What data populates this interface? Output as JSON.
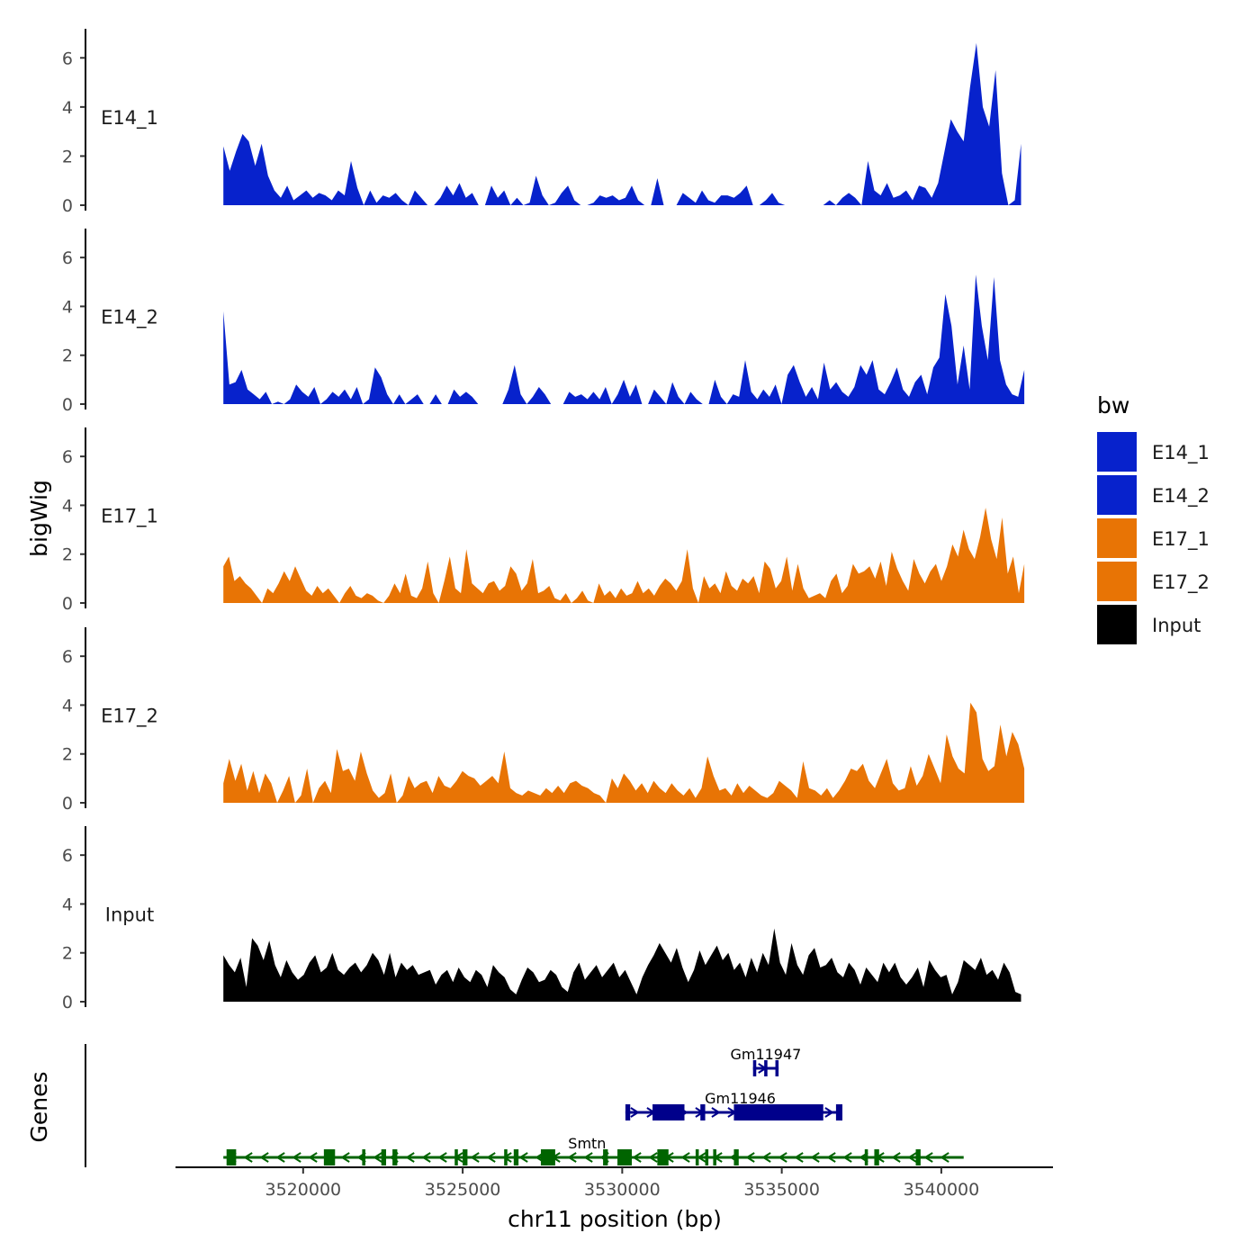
{
  "chart_data": {
    "type": "area",
    "title": "",
    "xlabel": "chr11 position (bp)",
    "ylabel": "bigWig",
    "genes_label": "Genes",
    "xlim": [
      3516000,
      3543500
    ],
    "ylim": [
      0,
      7
    ],
    "x_ticks": [
      {
        "value": 3520000,
        "label": "3520000"
      },
      {
        "value": 3525000,
        "label": "3525000"
      },
      {
        "value": 3530000,
        "label": "3530000"
      },
      {
        "value": 3535000,
        "label": "3535000"
      },
      {
        "value": 3540000,
        "label": "3540000"
      }
    ],
    "y_ticks": [
      {
        "value": 0,
        "label": "0"
      },
      {
        "value": 2,
        "label": "2"
      },
      {
        "value": 4,
        "label": "4"
      },
      {
        "value": 6,
        "label": "6"
      }
    ],
    "legend": {
      "title": "bw",
      "entries": [
        {
          "label": "E14_1",
          "color": "#0722cc"
        },
        {
          "label": "E14_2",
          "color": "#0722cc"
        },
        {
          "label": "E17_1",
          "color": "#e87405"
        },
        {
          "label": "E17_2",
          "color": "#e87405"
        },
        {
          "label": "Input",
          "color": "#000000"
        }
      ]
    },
    "series": [
      {
        "name": "E14_1",
        "color": "#0722cc",
        "x_start": 3517500,
        "x_end": 3542500,
        "values": [
          2.4,
          1.4,
          2.2,
          2.9,
          2.6,
          1.6,
          2.5,
          1.2,
          0.6,
          0.3,
          0.8,
          0.2,
          0.4,
          0.6,
          0.3,
          0.5,
          0.4,
          0.2,
          0.6,
          0.4,
          1.8,
          0.7,
          0,
          0.6,
          0.1,
          0.4,
          0.3,
          0.5,
          0.2,
          0,
          0.6,
          0.3,
          0,
          0,
          0.3,
          0.8,
          0.4,
          0.9,
          0.3,
          0.5,
          0,
          0,
          0.8,
          0.3,
          0.6,
          0,
          0.3,
          0,
          0.1,
          1.2,
          0.4,
          0,
          0.1,
          0.5,
          0.8,
          0.2,
          0,
          0,
          0.1,
          0.4,
          0.3,
          0.4,
          0.2,
          0.3,
          0.8,
          0.2,
          0,
          0,
          1.1,
          0,
          0,
          0,
          0.5,
          0.3,
          0.1,
          0.6,
          0.2,
          0.1,
          0.4,
          0.4,
          0.3,
          0.5,
          0.8,
          0,
          0,
          0.2,
          0.5,
          0.1,
          0,
          0,
          0,
          0,
          0,
          0,
          0,
          0.2,
          0,
          0.3,
          0.5,
          0.3,
          0,
          1.8,
          0.6,
          0.4,
          0.9,
          0.3,
          0.4,
          0.6,
          0.2,
          0.8,
          0.7,
          0.3,
          0.9,
          2.2,
          3.5,
          3.0,
          2.6,
          4.8,
          6.6,
          4.0,
          3.2,
          5.5,
          1.3,
          0,
          0.2,
          2.5
        ]
      },
      {
        "name": "E14_2",
        "color": "#0722cc",
        "x_start": 3517500,
        "x_end": 3542600,
        "values": [
          3.8,
          0.8,
          0.9,
          1.4,
          0.6,
          0.4,
          0.2,
          0.5,
          0,
          0.1,
          0,
          0.2,
          0.8,
          0.5,
          0.3,
          0.7,
          0,
          0.2,
          0.5,
          0.3,
          0.6,
          0.2,
          0.7,
          0,
          0.2,
          1.5,
          1.1,
          0.4,
          0,
          0.4,
          0,
          0.2,
          0.4,
          0,
          0,
          0.4,
          0,
          0,
          0.6,
          0.3,
          0.5,
          0.3,
          0,
          0,
          0,
          0,
          0,
          0.6,
          1.6,
          0.4,
          0,
          0.3,
          0.7,
          0.4,
          0,
          0,
          0,
          0.5,
          0.3,
          0.4,
          0.2,
          0.5,
          0.2,
          0.7,
          0,
          0.4,
          1.0,
          0.3,
          0.8,
          0,
          0,
          0.6,
          0.3,
          0,
          0.9,
          0.3,
          0,
          0.5,
          0.2,
          0,
          0,
          1.0,
          0.3,
          0,
          0.4,
          0.3,
          1.8,
          0.5,
          0.2,
          0.6,
          0.3,
          0.8,
          0,
          1.2,
          1.6,
          0.9,
          0.3,
          0.7,
          0.2,
          1.7,
          0.6,
          0.9,
          0.5,
          0.3,
          0.7,
          1.6,
          1.2,
          1.8,
          0.6,
          0.4,
          0.9,
          1.5,
          0.6,
          0.3,
          0.9,
          1.2,
          0.4,
          1.5,
          1.9,
          4.5,
          3.2,
          0.8,
          2.4,
          0.6,
          5.3,
          3.2,
          1.8,
          5.2,
          1.8,
          0.8,
          0.4,
          0.3,
          1.4
        ]
      },
      {
        "name": "E17_1",
        "color": "#e87405",
        "x_start": 3517500,
        "x_end": 3542600,
        "values": [
          1.5,
          1.9,
          0.9,
          1.1,
          0.8,
          0.6,
          0.3,
          0,
          0.6,
          0.4,
          0.8,
          1.3,
          0.9,
          1.5,
          1.0,
          0.5,
          0.3,
          0.7,
          0.4,
          0.6,
          0.3,
          0,
          0.4,
          0.7,
          0.3,
          0.2,
          0.4,
          0.3,
          0.1,
          0,
          0.3,
          0.8,
          0.4,
          1.2,
          0.3,
          0.2,
          0.6,
          1.7,
          0.4,
          0,
          0.9,
          1.9,
          0.6,
          0.4,
          2.2,
          0.8,
          0.6,
          0.4,
          0.8,
          0.9,
          0.5,
          0.7,
          1.5,
          1.2,
          0.5,
          0.8,
          1.8,
          0.4,
          0.5,
          0.7,
          0.2,
          0.1,
          0.4,
          0,
          0.2,
          0.5,
          0.1,
          0,
          0.8,
          0.3,
          0.5,
          0.2,
          0.6,
          0.3,
          0.4,
          0.9,
          0.4,
          0.6,
          0.3,
          0.7,
          1.0,
          0.8,
          0.5,
          0.9,
          2.2,
          0.6,
          0,
          1.1,
          0.6,
          0.8,
          0.4,
          1.3,
          0.7,
          0.5,
          1.0,
          0.8,
          1.1,
          0.4,
          1.7,
          1.4,
          0.6,
          0.9,
          1.9,
          0.5,
          1.6,
          0.6,
          0.2,
          0.3,
          0.4,
          0.2,
          0.9,
          1.2,
          0.4,
          0.7,
          1.6,
          1.2,
          1.3,
          1.5,
          1.0,
          1.7,
          0.7,
          2.1,
          1.4,
          0.9,
          0.5,
          1.8,
          1.2,
          0.8,
          1.3,
          1.6,
          0.9,
          1.5,
          2.4,
          1.9,
          3.0,
          2.2,
          1.8,
          2.7,
          3.9,
          2.6,
          1.8,
          3.5,
          1.2,
          1.9,
          0.4,
          1.6
        ]
      },
      {
        "name": "E17_2",
        "color": "#e87405",
        "x_start": 3517500,
        "x_end": 3542600,
        "values": [
          0.8,
          1.8,
          0.9,
          1.6,
          0.5,
          1.3,
          0.4,
          1.2,
          0.8,
          0,
          0.5,
          1.1,
          0,
          0.3,
          1.4,
          0,
          0.6,
          0.9,
          0.4,
          2.2,
          1.3,
          1.4,
          0.9,
          2.1,
          1.2,
          0.5,
          0.2,
          0.4,
          1.2,
          0,
          0.3,
          1.1,
          0.6,
          0.8,
          0.9,
          0.4,
          1.1,
          0.7,
          0.6,
          0.9,
          1.3,
          1.1,
          1.0,
          0.7,
          0.9,
          1.1,
          0.8,
          2.1,
          0.6,
          0.4,
          0.3,
          0.5,
          0.4,
          0.3,
          0.6,
          0.4,
          0.7,
          0.4,
          0.8,
          0.9,
          0.7,
          0.6,
          0.4,
          0.3,
          0,
          1.0,
          0.6,
          1.2,
          0.9,
          0.5,
          0.8,
          0.4,
          0.9,
          0.6,
          0.4,
          0.8,
          0.5,
          0.3,
          0.6,
          0.2,
          0.6,
          1.9,
          1.1,
          0.5,
          0.6,
          0.3,
          0.8,
          0.4,
          0.7,
          0.5,
          0.3,
          0.2,
          0.4,
          0.9,
          0.7,
          0.5,
          0.2,
          1.7,
          0.6,
          0.5,
          0.3,
          0.6,
          0.2,
          0.5,
          0.9,
          1.4,
          1.3,
          1.6,
          0.9,
          0.6,
          1.2,
          1.8,
          0.8,
          0.5,
          0.6,
          1.5,
          0.7,
          1.1,
          2.0,
          1.4,
          0.8,
          2.8,
          1.9,
          1.4,
          1.2,
          4.1,
          3.7,
          1.8,
          1.3,
          1.5,
          3.2,
          1.9,
          2.9,
          2.4,
          1.4
        ]
      },
      {
        "name": "Input",
        "color": "#000000",
        "x_start": 3517500,
        "x_end": 3542500,
        "values": [
          1.9,
          1.5,
          1.2,
          1.8,
          0.6,
          2.6,
          2.3,
          1.7,
          2.5,
          1.5,
          1.0,
          1.7,
          1.2,
          0.9,
          1.1,
          1.6,
          1.9,
          1.2,
          1.4,
          2.0,
          1.3,
          1.1,
          1.4,
          1.6,
          1.2,
          1.5,
          2.0,
          1.7,
          1.1,
          2.0,
          1.0,
          1.6,
          1.3,
          1.5,
          1.1,
          1.2,
          1.3,
          0.7,
          1.1,
          1.3,
          0.8,
          1.4,
          1.0,
          0.8,
          1.3,
          1.1,
          0.6,
          1.5,
          1.2,
          1.0,
          0.5,
          0.3,
          0.9,
          1.4,
          1.2,
          0.8,
          0.9,
          1.3,
          1.1,
          0.6,
          0.4,
          1.2,
          1.6,
          0.9,
          1.2,
          1.5,
          1.0,
          1.3,
          1.6,
          1.0,
          1.3,
          0.8,
          0.3,
          1.0,
          1.5,
          1.9,
          2.4,
          2.0,
          1.6,
          2.2,
          1.4,
          0.8,
          1.3,
          2.1,
          1.5,
          1.9,
          2.3,
          1.7,
          2.0,
          1.3,
          1.6,
          1.0,
          1.8,
          1.2,
          2.0,
          1.5,
          3.0,
          1.6,
          1.1,
          2.4,
          1.5,
          1.1,
          1.9,
          2.2,
          1.4,
          1.5,
          1.8,
          1.2,
          1.0,
          1.6,
          1.3,
          0.7,
          1.4,
          1.1,
          0.8,
          1.6,
          1.2,
          1.6,
          1.0,
          0.7,
          1.0,
          1.4,
          0.6,
          1.7,
          1.3,
          1.0,
          1.1,
          0.3,
          0.8,
          1.7,
          1.5,
          1.3,
          1.8,
          1.1,
          1.3,
          0.9,
          1.6,
          1.2,
          0.4,
          0.3
        ]
      }
    ],
    "genes": [
      {
        "name": "Gm11947",
        "color": "#00008b",
        "row": 2,
        "start": 3534100,
        "end": 3534900,
        "strand": "+",
        "exons": [
          [
            3534100,
            3534200
          ],
          [
            3534450,
            3534550
          ],
          [
            3534800,
            3534900
          ]
        ],
        "label_x": 3534500
      },
      {
        "name": "Gm11946",
        "color": "#00008b",
        "row": 1,
        "start": 3530100,
        "end": 3536900,
        "strand": "+",
        "exons": [
          [
            3530100,
            3530250
          ],
          [
            3530950,
            3531950
          ],
          [
            3532450,
            3532600
          ],
          [
            3533500,
            3536300
          ],
          [
            3536700,
            3536900
          ]
        ],
        "label_x": 3533700
      },
      {
        "name": "Smtn",
        "color": "#006400",
        "row": 0,
        "start": 3517500,
        "end": 3540700,
        "strand": "-",
        "exons": [
          [
            3517600,
            3517900
          ],
          [
            3520650,
            3521000
          ],
          [
            3521850,
            3521950
          ],
          [
            3522450,
            3522600
          ],
          [
            3522800,
            3522950
          ],
          [
            3524750,
            3524850
          ],
          [
            3525000,
            3525150
          ],
          [
            3526300,
            3526400
          ],
          [
            3526600,
            3526750
          ],
          [
            3527450,
            3527900
          ],
          [
            3529400,
            3529550
          ],
          [
            3529850,
            3530300
          ],
          [
            3531100,
            3531450
          ],
          [
            3532300,
            3532400
          ],
          [
            3532600,
            3532700
          ],
          [
            3532850,
            3532950
          ],
          [
            3533500,
            3533650
          ],
          [
            3537600,
            3537700
          ],
          [
            3537900,
            3538050
          ],
          [
            3539200,
            3539350
          ]
        ],
        "label_x": 3528900
      }
    ]
  }
}
